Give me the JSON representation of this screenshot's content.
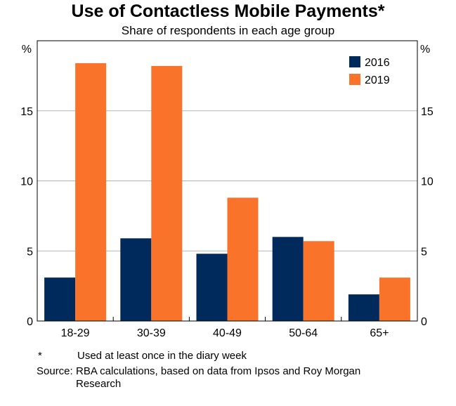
{
  "chart_data": {
    "type": "bar",
    "title": "Use of Contactless Mobile Payments",
    "title_marker": "*",
    "subtitle": "Share of respondents in each age group",
    "ylabel_left": "%",
    "ylabel_right": "%",
    "ylim": [
      0,
      20
    ],
    "yticks": [
      0,
      5,
      10,
      15
    ],
    "categories": [
      "18-29",
      "30-39",
      "40-49",
      "50-64",
      "65+"
    ],
    "series": [
      {
        "name": "2016",
        "color": "#002a5c",
        "values": [
          3.1,
          5.9,
          4.8,
          6.0,
          1.9
        ]
      },
      {
        "name": "2019",
        "color": "#f9732a",
        "values": [
          18.4,
          18.2,
          8.8,
          5.7,
          3.1
        ]
      }
    ],
    "legend_position": "top-right",
    "grid": true
  },
  "notes": {
    "footnote_marker": "*",
    "footnote_text": "Used at least once in the diary week",
    "source_label": "Source:",
    "source_text": "RBA calculations, based on data from Ipsos and Roy Morgan Research"
  }
}
